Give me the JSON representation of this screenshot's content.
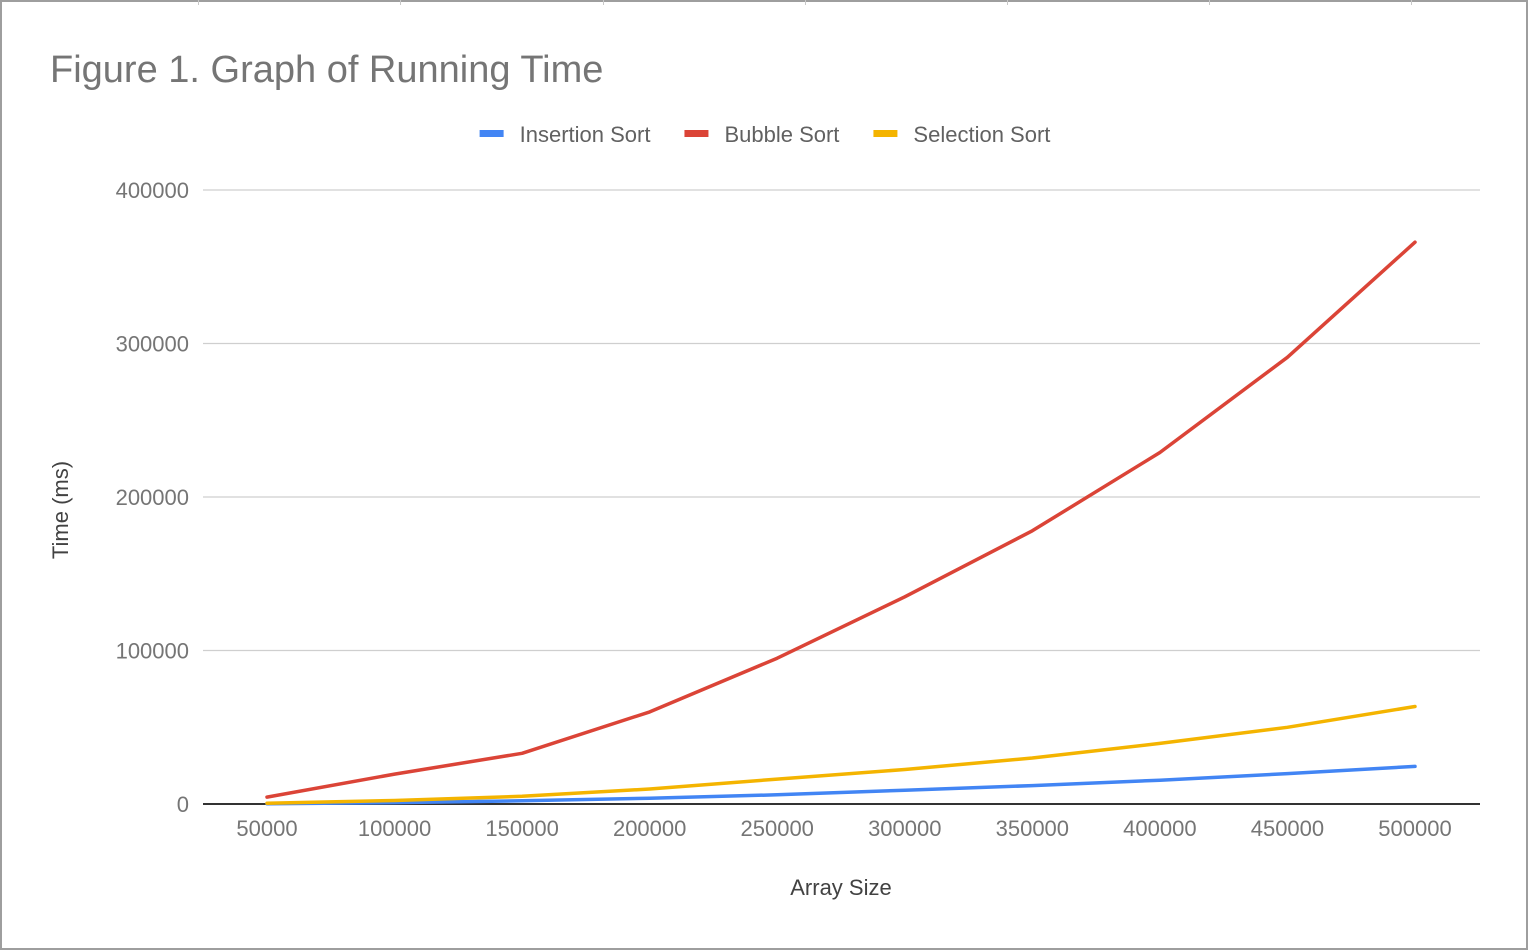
{
  "chart_data": {
    "type": "line",
    "title": "Figure 1. Graph of Running Time",
    "xlabel": "Array Size",
    "ylabel": "Time (ms)",
    "categories": [
      "50000",
      "100000",
      "150000",
      "200000",
      "250000",
      "300000",
      "350000",
      "400000",
      "450000",
      "500000"
    ],
    "ylim": [
      0,
      400000
    ],
    "yticks": [
      "0",
      "100000",
      "200000",
      "300000",
      "400000"
    ],
    "yticks_values": [
      0,
      100000,
      200000,
      300000,
      400000
    ],
    "grid": true,
    "legend_position": "top",
    "series": [
      {
        "name": "Insertion Sort",
        "color": "#4285f4",
        "values": [
          200,
          900,
          2100,
          3800,
          6000,
          9000,
          12000,
          15500,
          19800,
          24500
        ]
      },
      {
        "name": "Bubble Sort",
        "color": "#db4437",
        "values": [
          4500,
          19500,
          33000,
          60000,
          95000,
          135000,
          178000,
          229000,
          291000,
          366000
        ]
      },
      {
        "name": "Selection Sort",
        "color": "#f4b400",
        "values": [
          500,
          2300,
          5000,
          9800,
          16200,
          22500,
          30000,
          39500,
          50000,
          63500
        ]
      }
    ]
  }
}
